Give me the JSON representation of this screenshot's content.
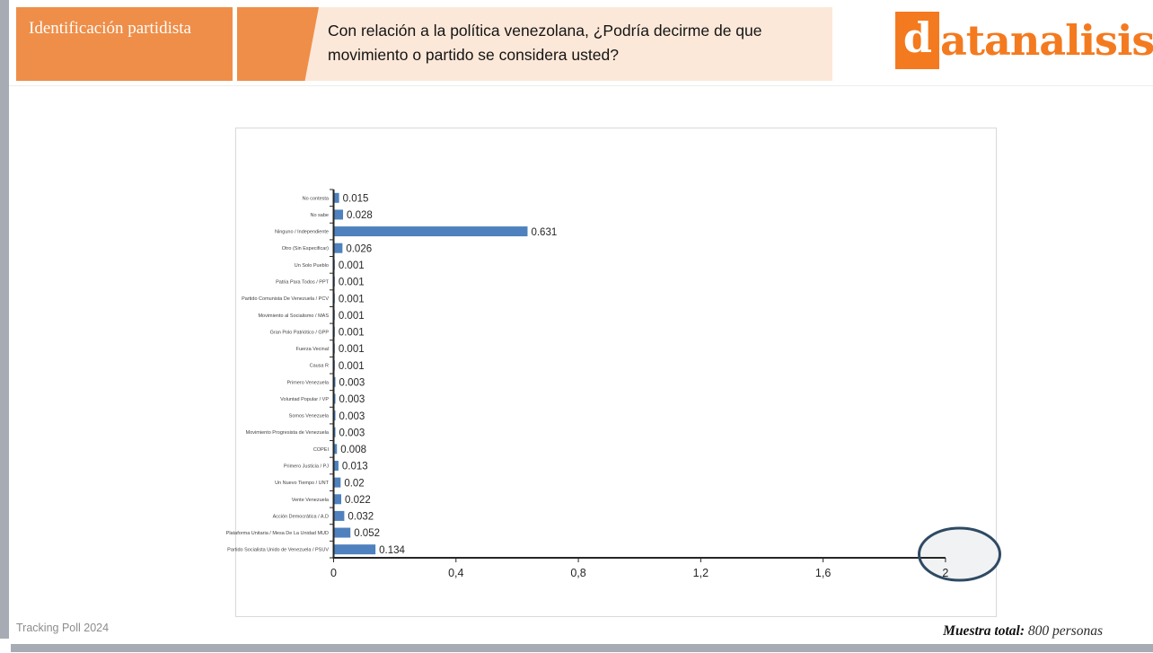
{
  "header": {
    "section_title": "Identificación partidista",
    "question": "Con relación a la política venezolana, ¿Podría decirme de que movimiento o partido se considera usted?",
    "logo_d": "d",
    "logo_rest": "atanalisis"
  },
  "footer": {
    "tracking": "Tracking Poll 2024",
    "muestra_label": "Muestra total:",
    "muestra_value": " 800 personas"
  },
  "chart_data": {
    "type": "bar",
    "orientation": "horizontal",
    "title": "",
    "xlabel": "",
    "ylabel": "",
    "xlim": [
      0,
      2
    ],
    "grid": false,
    "legend": "none",
    "bar_color": "#4e81bd",
    "categories": [
      "No contesta",
      "No sabe",
      "Ninguno / Independiente",
      "Otro (Sin Especificar)",
      "Un Solo Pueblo",
      "Patria Para Todos / PPT",
      "Partido Comunista De Venezuela / PCV",
      "Movimiento al Socialismo / MAS",
      "Gran Polo Patriótico / GPP",
      "Fuerza Vecinal",
      "Causa R",
      "Primero Venezuela",
      "Voluntad Popular / VP",
      "Somos Venezuela",
      "Movimiento Progresista de Venezuela",
      "COPEI",
      "Primero Justicia / PJ",
      "Un Nuevo Tiempo / UNT",
      "Vente Venezuela",
      "Acción Democrática / A.D",
      "Plataforma Unitaria / Mesa De La Unidad MUD",
      "Partido Socialista Unido de Venezuela / PSUV"
    ],
    "values": [
      0.015,
      0.028,
      0.631,
      0.026,
      0.001,
      0.001,
      0.001,
      0.001,
      0.001,
      0.001,
      0.001,
      0.003,
      0.003,
      0.003,
      0.003,
      0.008,
      0.013,
      0.02,
      0.022,
      0.032,
      0.052,
      0.134
    ],
    "value_labels": [
      "0.015",
      "0.028",
      "0.631",
      "0.026",
      "0.001",
      "0.001",
      "0.001",
      "0.001",
      "0.001",
      "0.001",
      "0.001",
      "0.003",
      "0.003",
      "0.003",
      "0.003",
      "0.008",
      "0.013",
      "0.02",
      "0.022",
      "0.032",
      "0.052",
      "0.134"
    ],
    "x_ticks": [
      "0",
      "0,4",
      "0,8",
      "1,2",
      "1,6",
      "2"
    ],
    "annotation": {
      "shape": "ellipse",
      "around": "x-axis tick 2",
      "stroke_color": "#2e4a63",
      "fill_color": "#f0f1f2"
    }
  }
}
